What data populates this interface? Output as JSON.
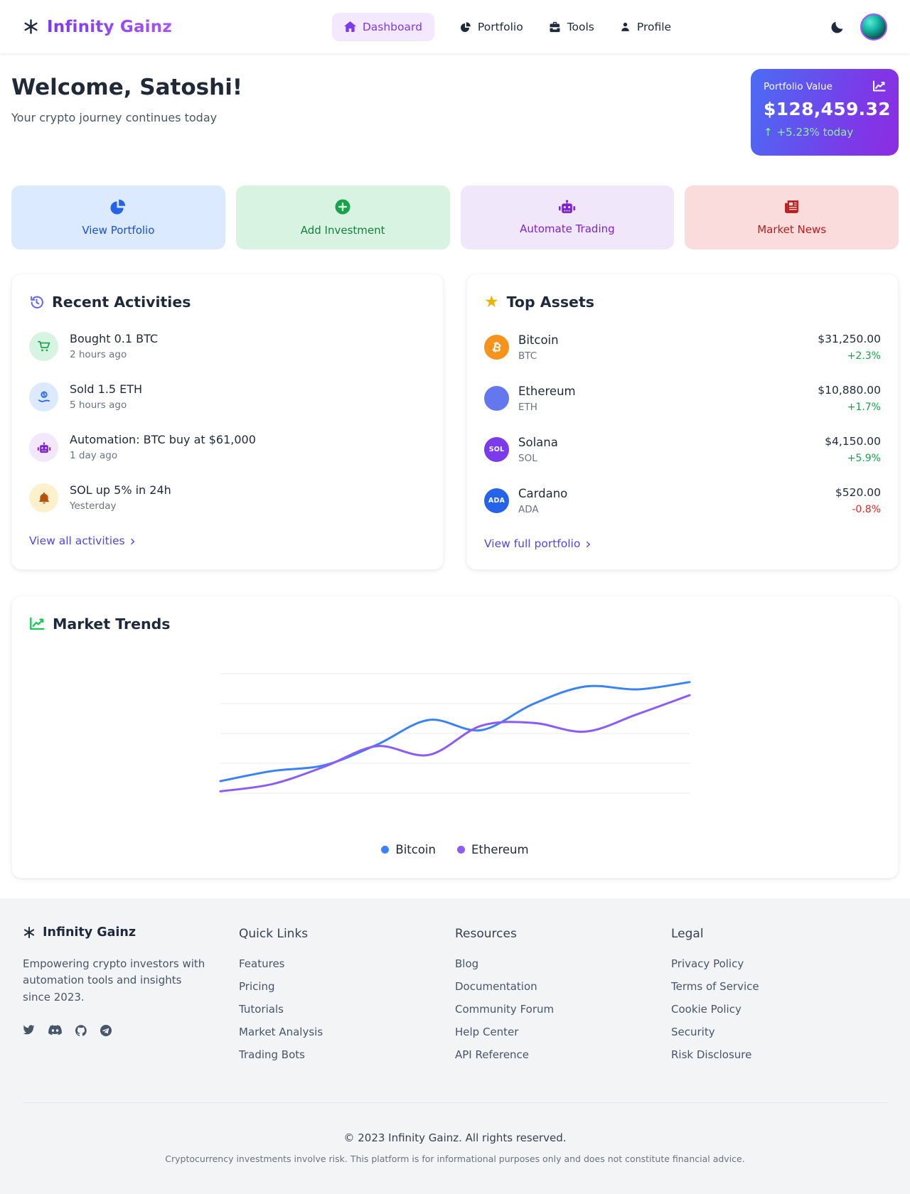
{
  "brand": {
    "name": "Infinity Gainz"
  },
  "nav": {
    "items": [
      {
        "label": "Dashboard",
        "active": true
      },
      {
        "label": "Portfolio",
        "active": false
      },
      {
        "label": "Tools",
        "active": false
      },
      {
        "label": "Profile",
        "active": false
      }
    ]
  },
  "welcome": {
    "title": "Welcome, Satoshi!",
    "subtitle": "Your crypto journey continues today"
  },
  "portfolio_card": {
    "label": "Portfolio Value",
    "value": "$128,459.32",
    "arrow_glyph": "↑",
    "change": "+5.23% today"
  },
  "quick_actions": {
    "items": [
      {
        "label": "View Portfolio"
      },
      {
        "label": "Add Investment"
      },
      {
        "label": "Automate Trading"
      },
      {
        "label": "Market News"
      }
    ]
  },
  "recent_activities": {
    "title": "Recent Activities",
    "items": [
      {
        "title": "Bought 0.1 BTC",
        "time": "2 hours ago"
      },
      {
        "title": "Sold 1.5 ETH",
        "time": "5 hours ago"
      },
      {
        "title": "Automation: BTC buy at $61,000",
        "time": "1 day ago"
      },
      {
        "title": "SOL up 5% in 24h",
        "time": "Yesterday"
      }
    ],
    "link_label": "View all activities",
    "chevron_glyph": "›"
  },
  "top_assets": {
    "title": "Top Assets",
    "star_glyph": "★",
    "items": [
      {
        "name": "Bitcoin",
        "symbol": "BTC",
        "price": "$31,250.00",
        "change": "+2.3%",
        "direction": "up",
        "badge_text": "₿",
        "badge_color": "#f7931a"
      },
      {
        "name": "Ethereum",
        "symbol": "ETH",
        "price": "$10,880.00",
        "change": "+1.7%",
        "direction": "up",
        "badge_text": "",
        "badge_color": "#6577ee"
      },
      {
        "name": "Solana",
        "symbol": "SOL",
        "price": "$4,150.00",
        "change": "+5.9%",
        "direction": "up",
        "badge_text": "SOL",
        "badge_color": "#7c3aed"
      },
      {
        "name": "Cardano",
        "symbol": "ADA",
        "price": "$520.00",
        "change": "-0.8%",
        "direction": "down",
        "badge_text": "ADA",
        "badge_color": "#2563eb"
      }
    ],
    "link_label": "View full portfolio",
    "chevron_glyph": "›"
  },
  "market_trends": {
    "title": "Market Trends"
  },
  "chart_data": {
    "type": "line",
    "title": "Market Trends",
    "axis_labels_visible": false,
    "grid": "horizontal",
    "gridlines": 5,
    "legend_position": "bottom",
    "ylim": [
      0,
      100
    ],
    "series": [
      {
        "name": "Bitcoin",
        "color": "#3b82f6",
        "values": [
          18,
          25,
          29,
          43,
          60,
          53,
          71,
          83,
          81,
          86
        ]
      },
      {
        "name": "Ethereum",
        "color": "#8b5cf6",
        "values": [
          11,
          16,
          28,
          42,
          36,
          56,
          58,
          52,
          64,
          77
        ]
      }
    ]
  },
  "footer": {
    "brand": "Infinity Gainz",
    "description": "Empowering crypto investors with automation tools and insights since 2023.",
    "columns": [
      {
        "heading": "Quick Links",
        "links": [
          "Features",
          "Pricing",
          "Tutorials",
          "Market Analysis",
          "Trading Bots"
        ]
      },
      {
        "heading": "Resources",
        "links": [
          "Blog",
          "Documentation",
          "Community Forum",
          "Help Center",
          "API Reference"
        ]
      },
      {
        "heading": "Legal",
        "links": [
          "Privacy Policy",
          "Terms of Service",
          "Cookie Policy",
          "Security",
          "Risk Disclosure"
        ]
      }
    ],
    "copyright": "© 2023 Infinity Gainz. All rights reserved.",
    "disclaimer": "Cryptocurrency investments involve risk. This platform is for informational purposes only and does not constitute financial advice."
  },
  "colors": {
    "accent": "#7c3aed",
    "pv_gradient_start": "#4a6cf5",
    "pv_gradient_end": "#8d2de2",
    "positive": "#16a34a",
    "negative": "#dc2626",
    "link": "#4f46e5"
  }
}
